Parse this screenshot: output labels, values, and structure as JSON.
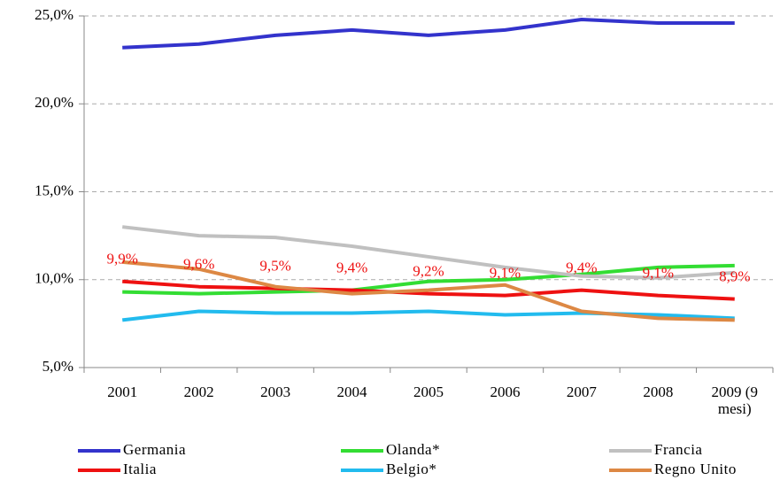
{
  "chart_data": {
    "type": "line",
    "categories": [
      "2001",
      "2002",
      "2003",
      "2004",
      "2005",
      "2006",
      "2007",
      "2008",
      "2009 (9 mesi)"
    ],
    "series": [
      {
        "name": "Germania",
        "color": "#3333cc",
        "values": [
          23.2,
          23.4,
          23.9,
          24.2,
          23.9,
          24.2,
          24.8,
          24.6,
          24.6
        ]
      },
      {
        "name": "Olanda*",
        "color": "#33dd33",
        "values": [
          9.3,
          9.2,
          9.3,
          9.4,
          9.9,
          10.0,
          10.3,
          10.7,
          10.8
        ]
      },
      {
        "name": "Francia",
        "color": "#c0c0c0",
        "values": [
          13.0,
          12.5,
          12.4,
          11.9,
          11.3,
          10.7,
          10.2,
          10.1,
          10.4
        ]
      },
      {
        "name": "Italia",
        "color": "#ee1111",
        "values": [
          9.9,
          9.6,
          9.5,
          9.4,
          9.2,
          9.1,
          9.4,
          9.1,
          8.9
        ],
        "value_labels": [
          "9,9%",
          "9,6%",
          "9,5%",
          "9,4%",
          "9,2%",
          "9,1%",
          "9,4%",
          "9,1%",
          "8,9%"
        ]
      },
      {
        "name": "Belgio*",
        "color": "#22bbee",
        "values": [
          7.7,
          8.2,
          8.1,
          8.1,
          8.2,
          8.0,
          8.1,
          8.0,
          7.8
        ]
      },
      {
        "name": "Regno Unito",
        "color": "#dd8844",
        "values": [
          11.0,
          10.6,
          9.6,
          9.2,
          9.4,
          9.7,
          8.2,
          7.8,
          7.7
        ]
      }
    ],
    "ylim": [
      5,
      25
    ],
    "yticks": [
      {
        "value": 5,
        "label": "5,0%"
      },
      {
        "value": 10,
        "label": "10,0%"
      },
      {
        "value": 15,
        "label": "15,0%"
      },
      {
        "value": 20,
        "label": "20,0%"
      },
      {
        "value": 25,
        "label": "25,0%"
      }
    ],
    "grid": true,
    "legend": "bottom"
  }
}
